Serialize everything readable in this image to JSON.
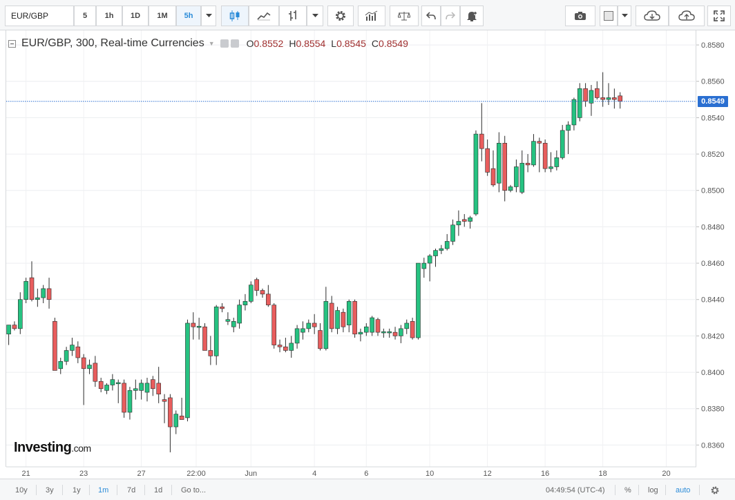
{
  "toolbar": {
    "symbol": "EUR/GBP",
    "intervals": [
      {
        "label": "5",
        "active": false
      },
      {
        "label": "1h",
        "active": false
      },
      {
        "label": "1D",
        "active": false
      },
      {
        "label": "1M",
        "active": false
      },
      {
        "label": "5h",
        "active": true
      }
    ],
    "icons": [
      "chevron-down-icon",
      "candles-icon",
      "line-chart-icon",
      "bars-icon",
      "chevron-down-icon",
      "settings-gear-icon",
      "indicators-icon",
      "compare-scale-icon",
      "undo-icon",
      "redo-icon",
      "alert-bell-icon",
      "camera-icon",
      "color-square-icon",
      "chevron-down-icon",
      "cloud-download-icon",
      "cloud-upload-icon",
      "fullscreen-icon"
    ]
  },
  "legend": {
    "title": "EUR/GBP, 300, Real-time Currencies",
    "open_label": "O",
    "open": "0.8552",
    "high_label": "H",
    "high": "0.8554",
    "low_label": "L",
    "low": "0.8545",
    "close_label": "C",
    "close": "0.8549"
  },
  "logo": {
    "name": "Investing",
    "domain": ".com"
  },
  "last_price": "0.8549",
  "colors": {
    "up": "#26c281",
    "down": "#e85d5d",
    "line": "#2a6fd1",
    "accent": "#2a8bd8"
  },
  "bottombar": {
    "ranges": [
      {
        "label": "10y",
        "active": false
      },
      {
        "label": "3y",
        "active": false
      },
      {
        "label": "1y",
        "active": false
      },
      {
        "label": "1m",
        "active": true
      },
      {
        "label": "7d",
        "active": false
      },
      {
        "label": "1d",
        "active": false
      }
    ],
    "goto_label": "Go to...",
    "time": "04:49:54 (UTC-4)",
    "percent_label": "%",
    "log_label": "log",
    "auto_label": "auto"
  },
  "chart_data": {
    "type": "candlestick",
    "title": "EUR/GBP, 300, Real-time Currencies",
    "ylim": [
      0.8348,
      0.8588
    ],
    "y_ticks": [
      "0.8360",
      "0.8380",
      "0.8400",
      "0.8420",
      "0.8440",
      "0.8460",
      "0.8480",
      "0.8500",
      "0.8520",
      "0.8540",
      "0.8560",
      "0.8580"
    ],
    "x_ticks": [
      {
        "label": "21",
        "bar": 3
      },
      {
        "label": "23",
        "bar": 13
      },
      {
        "label": "27",
        "bar": 23
      },
      {
        "label": "22:00",
        "bar": 32.5
      },
      {
        "label": "Jun",
        "bar": 42
      },
      {
        "label": "4",
        "bar": 53
      },
      {
        "label": "6",
        "bar": 62
      },
      {
        "label": "10",
        "bar": 73
      },
      {
        "label": "12",
        "bar": 83
      },
      {
        "label": "16",
        "bar": 93
      },
      {
        "label": "18",
        "bar": 103
      },
      {
        "label": "20",
        "bar": 114
      }
    ],
    "last_price": 0.8549,
    "grid": true,
    "candles": [
      [
        0.8421,
        0.8426,
        0.8415,
        0.8426
      ],
      [
        0.8426,
        0.8428,
        0.8423,
        0.8424
      ],
      [
        0.8424,
        0.8444,
        0.8421,
        0.844
      ],
      [
        0.844,
        0.8452,
        0.8438,
        0.845
      ],
      [
        0.8452,
        0.8461,
        0.8439,
        0.844
      ],
      [
        0.844,
        0.8446,
        0.8436,
        0.8441
      ],
      [
        0.8441,
        0.8448,
        0.8438,
        0.8446
      ],
      [
        0.8446,
        0.8452,
        0.8435,
        0.844
      ],
      [
        0.8428,
        0.843,
        0.8401,
        0.8401
      ],
      [
        0.8402,
        0.8408,
        0.8399,
        0.8406
      ],
      [
        0.8406,
        0.8414,
        0.8404,
        0.8412
      ],
      [
        0.8412,
        0.8419,
        0.8409,
        0.8415
      ],
      [
        0.8414,
        0.8417,
        0.8405,
        0.8408
      ],
      [
        0.8408,
        0.841,
        0.8382,
        0.8402
      ],
      [
        0.8402,
        0.8407,
        0.8399,
        0.8404
      ],
      [
        0.8405,
        0.8409,
        0.8392,
        0.8395
      ],
      [
        0.8395,
        0.8397,
        0.8389,
        0.8391
      ],
      [
        0.839,
        0.8394,
        0.8388,
        0.8393
      ],
      [
        0.8393,
        0.8399,
        0.839,
        0.8396
      ],
      [
        0.8394,
        0.8396,
        0.8383,
        0.8394
      ],
      [
        0.8394,
        0.8396,
        0.8375,
        0.8378
      ],
      [
        0.8378,
        0.8392,
        0.8374,
        0.839
      ],
      [
        0.839,
        0.8396,
        0.8385,
        0.8391
      ],
      [
        0.839,
        0.8396,
        0.8385,
        0.8394
      ],
      [
        0.8389,
        0.8397,
        0.8384,
        0.8394
      ],
      [
        0.8396,
        0.8398,
        0.8387,
        0.8391
      ],
      [
        0.8394,
        0.8403,
        0.8383,
        0.8388
      ],
      [
        0.8385,
        0.8388,
        0.8372,
        0.8384
      ],
      [
        0.8386,
        0.8388,
        0.8356,
        0.837
      ],
      [
        0.837,
        0.8379,
        0.8366,
        0.8377
      ],
      [
        0.8376,
        0.8386,
        0.8374,
        0.8374
      ],
      [
        0.8375,
        0.8429,
        0.8373,
        0.8427
      ],
      [
        0.8427,
        0.8433,
        0.8418,
        0.8425
      ],
      [
        0.8425,
        0.843,
        0.8418,
        0.8425
      ],
      [
        0.8425,
        0.8427,
        0.8412,
        0.8412
      ],
      [
        0.8412,
        0.842,
        0.8404,
        0.8409
      ],
      [
        0.8409,
        0.8437,
        0.8404,
        0.8436
      ],
      [
        0.8436,
        0.8438,
        0.8433,
        0.8435
      ],
      [
        0.8428,
        0.8433,
        0.8426,
        0.8429
      ],
      [
        0.8425,
        0.843,
        0.8422,
        0.8428
      ],
      [
        0.8427,
        0.844,
        0.8424,
        0.8437
      ],
      [
        0.8437,
        0.8443,
        0.8434,
        0.8439
      ],
      [
        0.8439,
        0.845,
        0.8438,
        0.8448
      ],
      [
        0.8451,
        0.8452,
        0.8442,
        0.8445
      ],
      [
        0.8445,
        0.8446,
        0.8441,
        0.8443
      ],
      [
        0.8443,
        0.8448,
        0.8436,
        0.8437
      ],
      [
        0.8437,
        0.8438,
        0.8413,
        0.8415
      ],
      [
        0.8415,
        0.8418,
        0.8411,
        0.8414
      ],
      [
        0.8414,
        0.8419,
        0.8411,
        0.8412
      ],
      [
        0.8412,
        0.842,
        0.8408,
        0.8416
      ],
      [
        0.8416,
        0.8426,
        0.8413,
        0.8424
      ],
      [
        0.8422,
        0.8428,
        0.8418,
        0.8424
      ],
      [
        0.8424,
        0.8429,
        0.8422,
        0.8427
      ],
      [
        0.8427,
        0.8432,
        0.8421,
        0.8425
      ],
      [
        0.8423,
        0.8427,
        0.8412,
        0.8413
      ],
      [
        0.8413,
        0.8447,
        0.8412,
        0.8439
      ],
      [
        0.8438,
        0.8442,
        0.8422,
        0.8424
      ],
      [
        0.8424,
        0.8436,
        0.8421,
        0.8434
      ],
      [
        0.8433,
        0.8435,
        0.8422,
        0.8425
      ],
      [
        0.8426,
        0.844,
        0.8422,
        0.8439
      ],
      [
        0.8439,
        0.844,
        0.8419,
        0.8421
      ],
      [
        0.8421,
        0.8424,
        0.8417,
        0.8422
      ],
      [
        0.8422,
        0.8427,
        0.842,
        0.8425
      ],
      [
        0.8422,
        0.8431,
        0.842,
        0.843
      ],
      [
        0.8429,
        0.843,
        0.842,
        0.8422
      ],
      [
        0.8422,
        0.8424,
        0.8419,
        0.8422
      ],
      [
        0.8422,
        0.8424,
        0.8419,
        0.8422
      ],
      [
        0.8422,
        0.8425,
        0.8418,
        0.842
      ],
      [
        0.842,
        0.8426,
        0.8416,
        0.8424
      ],
      [
        0.8424,
        0.8429,
        0.8421,
        0.8427
      ],
      [
        0.8428,
        0.843,
        0.8418,
        0.8419
      ],
      [
        0.8419,
        0.846,
        0.8418,
        0.846
      ],
      [
        0.8457,
        0.8463,
        0.8452,
        0.846
      ],
      [
        0.846,
        0.8465,
        0.845,
        0.8464
      ],
      [
        0.8464,
        0.8468,
        0.8458,
        0.8467
      ],
      [
        0.8467,
        0.847,
        0.8465,
        0.8468
      ],
      [
        0.8468,
        0.8476,
        0.8467,
        0.8472
      ],
      [
        0.8472,
        0.8484,
        0.847,
        0.8481
      ],
      [
        0.8481,
        0.8489,
        0.8475,
        0.8483
      ],
      [
        0.8484,
        0.8487,
        0.848,
        0.8483
      ],
      [
        0.8483,
        0.8486,
        0.8479,
        0.8485
      ],
      [
        0.8487,
        0.8533,
        0.8486,
        0.8531
      ],
      [
        0.8531,
        0.8548,
        0.8516,
        0.8523
      ],
      [
        0.8523,
        0.8528,
        0.8508,
        0.851
      ],
      [
        0.8512,
        0.8522,
        0.8502,
        0.8503
      ],
      [
        0.8504,
        0.8532,
        0.8499,
        0.8526
      ],
      [
        0.8526,
        0.853,
        0.8494,
        0.85
      ],
      [
        0.85,
        0.8503,
        0.8499,
        0.8502
      ],
      [
        0.8502,
        0.8517,
        0.8499,
        0.8513
      ],
      [
        0.8499,
        0.8522,
        0.8498,
        0.8515
      ],
      [
        0.8515,
        0.852,
        0.851,
        0.8514
      ],
      [
        0.8514,
        0.8531,
        0.8513,
        0.8527
      ],
      [
        0.8527,
        0.8529,
        0.851,
        0.8526
      ],
      [
        0.8526,
        0.8528,
        0.851,
        0.8512
      ],
      [
        0.8512,
        0.8521,
        0.851,
        0.8513
      ],
      [
        0.8513,
        0.8522,
        0.8511,
        0.8518
      ],
      [
        0.8518,
        0.8536,
        0.8517,
        0.8533
      ],
      [
        0.8533,
        0.8538,
        0.852,
        0.8536
      ],
      [
        0.8536,
        0.8551,
        0.8533,
        0.855
      ],
      [
        0.854,
        0.8559,
        0.8538,
        0.8556
      ],
      [
        0.8556,
        0.8559,
        0.8546,
        0.8549
      ],
      [
        0.8548,
        0.8558,
        0.8541,
        0.8555
      ],
      [
        0.8556,
        0.856,
        0.855,
        0.8551
      ],
      [
        0.8551,
        0.8565,
        0.8546,
        0.855
      ],
      [
        0.855,
        0.8559,
        0.8547,
        0.8551
      ],
      [
        0.8551,
        0.8556,
        0.8545,
        0.855
      ],
      [
        0.8552,
        0.8554,
        0.8545,
        0.8549
      ]
    ]
  }
}
